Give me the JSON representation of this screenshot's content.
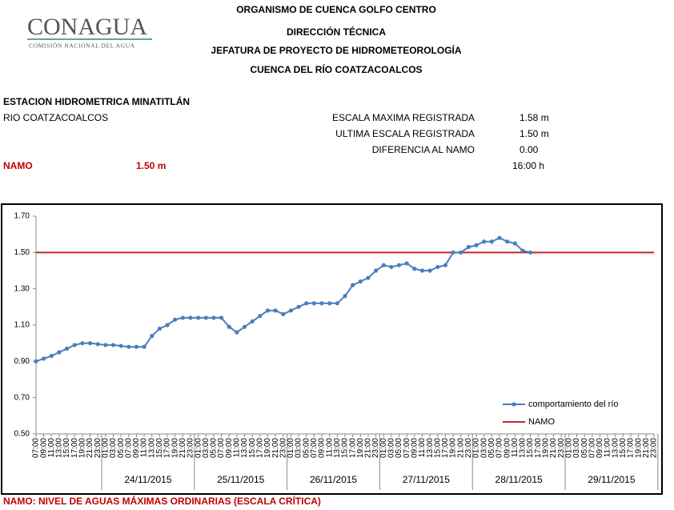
{
  "header": {
    "logo": "CONAGUA",
    "logo_sub": "COMISIÓN NACIONAL DEL AGUA",
    "lines": [
      "ORGANISMO DE CUENCA GOLFO CENTRO",
      "DIRECCIÓN TÉCNICA",
      "JEFATURA DE PROYECTO DE HIDROMETEOROLOGÍA",
      "CUENCA DEL RÍO COATZACOALCOS"
    ]
  },
  "info": {
    "station": "ESTACION HIDROMETRICA MINATITLÁN",
    "river": "RIO COATZACOALCOS",
    "stats": [
      [
        "ESCALA MAXIMA REGISTRADA",
        "1.58 m"
      ],
      [
        "ULTIMA ESCALA REGISTRADA",
        "1.50 m"
      ],
      [
        "DIFERENCIA AL NAMO",
        "0.00"
      ]
    ],
    "time": "16:00 h",
    "namo_label": "NAMO",
    "namo_value": "1.50 m"
  },
  "footer": "NAMO: NIVEL DE AGUAS MÁXIMAS ORDINARIAS (ESCALA CRÍTICA)",
  "chart_data": {
    "type": "line",
    "categories": [
      "07:00",
      "09:00",
      "11:00",
      "13:00",
      "15:00",
      "17:00",
      "19:00",
      "21:00",
      "23:00",
      "01:00",
      "03:00",
      "05:00",
      "07:00",
      "09:00",
      "11:00",
      "13:00",
      "15:00",
      "17:00",
      "19:00",
      "21:00",
      "23:00",
      "01:00",
      "03:00",
      "05:00",
      "07:00",
      "09:00",
      "11:00",
      "13:00",
      "15:00",
      "17:00",
      "19:00",
      "21:00",
      "23:00",
      "01:00",
      "03:00",
      "05:00",
      "07:00",
      "09:00",
      "11:00",
      "13:00",
      "15:00",
      "17:00",
      "19:00",
      "21:00",
      "23:00",
      "01:00",
      "03:00",
      "05:00",
      "07:00",
      "09:00",
      "11:00",
      "13:00",
      "15:00",
      "17:00",
      "19:00",
      "21:00",
      "23:00",
      "01:00",
      "03:00",
      "05:00",
      "07:00",
      "09:00",
      "11:00",
      "13:00",
      "15:00",
      "17:00",
      "19:00",
      "21:00",
      "23:00",
      "01:00",
      "03:00",
      "05:00",
      "07:00",
      "09:00",
      "11:00",
      "13:00",
      "15:00",
      "17:00",
      "19:00",
      "21:00",
      "23:00"
    ],
    "date_groups": [
      "24/11/2015",
      "25/11/2015",
      "26/11/2015",
      "27/11/2015",
      "28/11/2015",
      "29/11/2015"
    ],
    "series": [
      {
        "name": "comportamiento del río",
        "color": "#4a7ebb",
        "values": [
          0.9,
          0.915,
          0.93,
          0.95,
          0.97,
          0.99,
          1.0,
          1.0,
          0.995,
          0.99,
          0.99,
          0.985,
          0.98,
          0.98,
          0.98,
          1.04,
          1.08,
          1.1,
          1.13,
          1.14,
          1.14,
          1.14,
          1.14,
          1.14,
          1.14,
          1.09,
          1.06,
          1.09,
          1.12,
          1.15,
          1.18,
          1.18,
          1.16,
          1.18,
          1.2,
          1.22,
          1.22,
          1.22,
          1.22,
          1.22,
          1.26,
          1.32,
          1.34,
          1.36,
          1.4,
          1.43,
          1.42,
          1.43,
          1.44,
          1.41,
          1.4,
          1.4,
          1.42,
          1.43,
          1.5,
          1.5,
          1.53,
          1.54,
          1.56,
          1.56,
          1.58,
          1.56,
          1.55,
          1.51,
          1.5,
          null,
          null,
          null,
          null,
          null,
          null,
          null,
          null,
          null,
          null,
          null,
          null,
          null,
          null,
          null,
          null
        ]
      }
    ],
    "reference_line": {
      "name": "NAMO",
      "value": 1.5,
      "color": "#c0272d"
    },
    "ylim": [
      0.5,
      1.7
    ],
    "yticks": [
      {
        "value": 0.5,
        "label": "0.50"
      },
      {
        "value": 0.7,
        "label": "0.70"
      },
      {
        "value": 0.9,
        "label": "0.90"
      },
      {
        "value": 1.1,
        "label": "1.10"
      },
      {
        "value": 1.3,
        "label": "1.30"
      },
      {
        "value": 1.5,
        "label": "1.50"
      },
      {
        "value": 1.7,
        "label": "1.70"
      }
    ],
    "grid": false
  }
}
